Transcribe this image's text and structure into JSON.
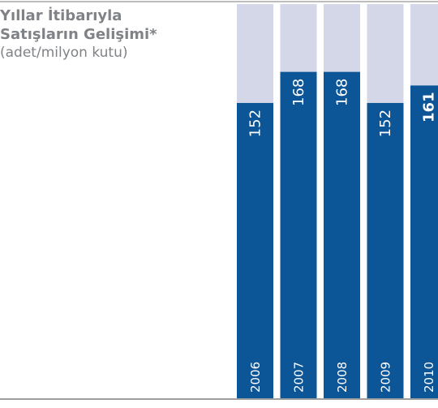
{
  "chart_data": {
    "type": "bar",
    "title": "Yıllar İtibarıyla Satışların Gelişimi*",
    "subtitle": "(adet/milyon kutu)",
    "categories": [
      "2006",
      "2007",
      "2008",
      "2009",
      "2010"
    ],
    "values": [
      152,
      168,
      168,
      152,
      161
    ],
    "color": "#0c5597",
    "background_color": "#d3d7e8",
    "ylim": [
      0,
      200
    ]
  }
}
